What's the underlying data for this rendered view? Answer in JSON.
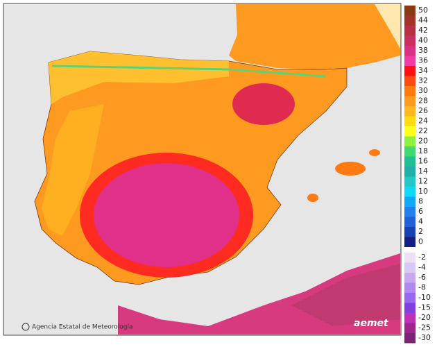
{
  "map": {
    "credit": "Agencia Estatal de Meteorología",
    "logo": "aemet"
  },
  "legend": [
    {
      "label": "50",
      "color": "#8a3a12"
    },
    {
      "label": "44",
      "color": "#a3322a"
    },
    {
      "label": "42",
      "color": "#b92f45"
    },
    {
      "label": "40",
      "color": "#c9305e"
    },
    {
      "label": "38",
      "color": "#dc3080"
    },
    {
      "label": "36",
      "color": "#f23aa6"
    },
    {
      "label": "34",
      "color": "#ff1010"
    },
    {
      "label": "32",
      "color": "#ff4a10"
    },
    {
      "label": "30",
      "color": "#ff7a10"
    },
    {
      "label": "28",
      "color": "#ff9a20"
    },
    {
      "label": "26",
      "color": "#ffb820"
    },
    {
      "label": "24",
      "color": "#ffdc10"
    },
    {
      "label": "22",
      "color": "#ffff20"
    },
    {
      "label": "20",
      "color": "#90f040"
    },
    {
      "label": "18",
      "color": "#40d870"
    },
    {
      "label": "16",
      "color": "#20c090"
    },
    {
      "label": "14",
      "color": "#20b0a8"
    },
    {
      "label": "12",
      "color": "#20c8c8"
    },
    {
      "label": "10",
      "color": "#10d8f8"
    },
    {
      "label": "8",
      "color": "#10a8f8"
    },
    {
      "label": "6",
      "color": "#2080f0"
    },
    {
      "label": "4",
      "color": "#2060d8"
    },
    {
      "label": "2",
      "color": "#1840b0"
    },
    {
      "label": "0",
      "color": "#142080"
    },
    {
      "label": "-2",
      "color": "#ece0f4"
    },
    {
      "label": "-4",
      "color": "#dcc8f4"
    },
    {
      "label": "-6",
      "color": "#c8a8f0"
    },
    {
      "label": "-8",
      "color": "#b088f0"
    },
    {
      "label": "-10",
      "color": "#9868f0"
    },
    {
      "label": "-15",
      "color": "#8040e0"
    },
    {
      "label": "-20",
      "color": "#c030b8"
    },
    {
      "label": "-25",
      "color": "#a02490"
    },
    {
      "label": "-30",
      "color": "#7a2474"
    }
  ]
}
